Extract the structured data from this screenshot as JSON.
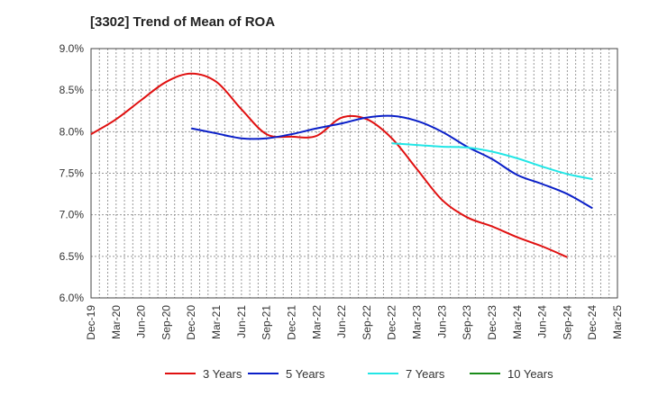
{
  "chart_data": {
    "type": "line",
    "title": "[3302]  Trend of Mean of ROA",
    "xlabel": "",
    "ylabel": "",
    "ylim": [
      6.0,
      9.0
    ],
    "y_ticks": [
      "6.0%",
      "6.5%",
      "7.0%",
      "7.5%",
      "8.0%",
      "8.5%",
      "9.0%"
    ],
    "x_ticks": [
      "Dec-19",
      "Mar-20",
      "Jun-20",
      "Sep-20",
      "Dec-20",
      "Mar-21",
      "Jun-21",
      "Sep-21",
      "Dec-21",
      "Mar-22",
      "Jun-22",
      "Sep-22",
      "Dec-22",
      "Mar-23",
      "Jun-23",
      "Sep-23",
      "Dec-23",
      "Mar-24",
      "Jun-24",
      "Sep-24",
      "Dec-24",
      "Mar-25"
    ],
    "grid": true,
    "legend_position": "bottom",
    "series": [
      {
        "name": "3 Years",
        "color": "#e01010",
        "start_index": 0,
        "values": [
          7.97,
          8.15,
          8.38,
          8.6,
          8.7,
          8.6,
          8.27,
          7.97,
          7.94,
          7.95,
          8.17,
          8.15,
          7.92,
          7.55,
          7.18,
          6.97,
          6.86,
          6.73,
          6.62,
          6.49
        ]
      },
      {
        "name": "5 Years",
        "color": "#0a1fc8",
        "start_index": 4,
        "values": [
          8.04,
          7.98,
          7.92,
          7.92,
          7.97,
          8.04,
          8.1,
          8.17,
          8.19,
          8.13,
          8.0,
          7.82,
          7.67,
          7.48,
          7.37,
          7.25,
          7.08
        ]
      },
      {
        "name": "7 Years",
        "color": "#22e6e6",
        "start_index": 12,
        "values": [
          7.86,
          7.84,
          7.82,
          7.81,
          7.76,
          7.68,
          7.58,
          7.49,
          7.43
        ]
      },
      {
        "name": "10 Years",
        "color": "#1a8c1a",
        "start_index": 0,
        "values": []
      }
    ]
  }
}
